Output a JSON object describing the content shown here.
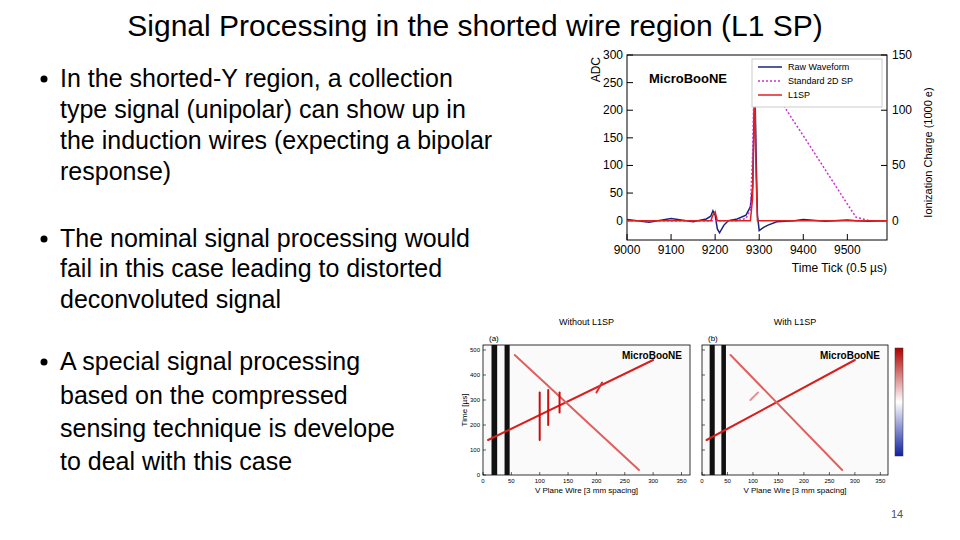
{
  "title": "Signal Processing in the shorted wire region (L1 SP)",
  "bullets": [
    [
      "In the shorted-Y region, a collection",
      "type signal (unipolar) can show up in",
      "the induction wires (expecting a bipolar",
      "response)"
    ],
    [
      "The nominal signal processing would",
      "fail in this case leading to distorted",
      "deconvoluted signal"
    ],
    [
      "A special signal processing",
      "based on the compressed",
      "sensing technique is develope",
      "to deal with this case"
    ]
  ],
  "page_number": "14",
  "chart_data": [
    {
      "type": "line",
      "annotation": "MicroBooNE",
      "xlabel": "Time Tick (0.5 µs)",
      "ylabel": "ADC",
      "y2label": "Ionization Charge (1000 e)",
      "x": [
        9000,
        9050,
        9100,
        9150,
        9180,
        9190,
        9195,
        9200,
        9205,
        9210,
        9220,
        9230,
        9250,
        9270,
        9280,
        9285,
        9288,
        9290,
        9293,
        9296,
        9300,
        9310,
        9320,
        9340,
        9380,
        9400,
        9450,
        9500,
        9520,
        9550,
        9590
      ],
      "series": [
        {
          "name": "Raw Waveform",
          "color": "#1a237e",
          "line_style": "solid",
          "values": [
            2,
            -3,
            4,
            -2,
            3,
            8,
            18,
            10,
            -15,
            -22,
            -8,
            0,
            3,
            10,
            25,
            60,
            180,
            255,
            120,
            10,
            -18,
            -12,
            -8,
            -2,
            0,
            2,
            -1,
            1,
            0,
            -1,
            0
          ]
        },
        {
          "name": "Standard 2D SP",
          "color": "#cc33cc",
          "line_style": "dotted",
          "axis": "y2",
          "values": [
            0,
            0,
            0,
            0,
            0,
            0,
            0,
            0,
            0,
            0,
            0,
            0,
            0,
            2,
            10,
            60,
            120,
            145,
            143,
            141,
            139,
            133,
            126,
            114,
            89,
            77,
            46,
            15,
            3,
            0,
            0
          ]
        },
        {
          "name": "L1SP",
          "color": "#e02020",
          "line_style": "solid",
          "axis": "y2",
          "values": [
            0,
            0,
            0,
            0,
            0,
            0,
            5,
            8,
            0,
            0,
            0,
            0,
            0,
            0,
            0,
            20,
            80,
            115,
            40,
            0,
            0,
            0,
            0,
            0,
            0,
            0,
            0,
            0,
            0,
            0,
            0
          ]
        }
      ],
      "xlim": [
        9000,
        9590
      ],
      "xticks": [
        9000,
        9100,
        9200,
        9300,
        9400,
        9500
      ],
      "ylim": [
        -35,
        300
      ],
      "yticks": [
        0,
        50,
        100,
        150,
        200,
        250,
        300
      ],
      "y2lim": [
        -17.5,
        150
      ],
      "y2ticks": [
        0,
        50,
        100,
        150
      ],
      "legend": "top-right"
    },
    {
      "type": "heatmap",
      "title": "Without L1SP",
      "panel": "(a)",
      "annotation": "MicroBooNE",
      "xlabel": "V Plane Wire [3 mm spacing]",
      "ylabel": "Time [µs]",
      "xlim": [
        0,
        365
      ],
      "xticks": [
        0,
        50,
        100,
        150,
        200,
        250,
        300,
        350
      ],
      "ylim": [
        0,
        520
      ],
      "yticks": [
        0,
        100,
        200,
        300,
        400,
        500
      ],
      "dead_wires": [
        [
          15,
          25
        ],
        [
          38,
          47
        ]
      ],
      "tracks": [
        {
          "color": "#d81e1e",
          "x": [
            9,
            300
          ],
          "y": [
            140,
            460
          ]
        },
        {
          "color": "#e06060",
          "x": [
            56,
            275
          ],
          "y": [
            480,
            20
          ]
        },
        {
          "color": "#c81010",
          "x": [
            100,
            100
          ],
          "y": [
            140,
            330
          ]
        },
        {
          "color": "#c81010",
          "x": [
            115,
            115
          ],
          "y": [
            200,
            340
          ]
        },
        {
          "color": "#c81010",
          "x": [
            135,
            135
          ],
          "y": [
            250,
            330
          ]
        },
        {
          "color": "#d83030",
          "x": [
            200,
            210
          ],
          "y": [
            330,
            370
          ]
        }
      ]
    },
    {
      "type": "heatmap",
      "title": "With L1SP",
      "panel": "(b)",
      "annotation": "MicroBooNE",
      "xlabel": "V Plane Wire [3 mm spacing]",
      "tick_labels": "x",
      "xlim": [
        0,
        365
      ],
      "xticks": [
        0,
        50,
        100,
        150,
        200,
        250,
        300,
        350
      ],
      "ylim": [
        0,
        520
      ],
      "yticks": [
        0,
        100,
        200,
        300,
        400,
        500
      ],
      "dead_wires": [
        [
          15,
          25
        ],
        [
          38,
          47
        ]
      ],
      "tracks": [
        {
          "color": "#d81e1e",
          "x": [
            9,
            300
          ],
          "y": [
            140,
            460
          ]
        },
        {
          "color": "#e06060",
          "x": [
            56,
            275
          ],
          "y": [
            480,
            20
          ]
        },
        {
          "color": "#e89090",
          "x": [
            95,
            110
          ],
          "y": [
            300,
            330
          ]
        }
      ]
    }
  ]
}
